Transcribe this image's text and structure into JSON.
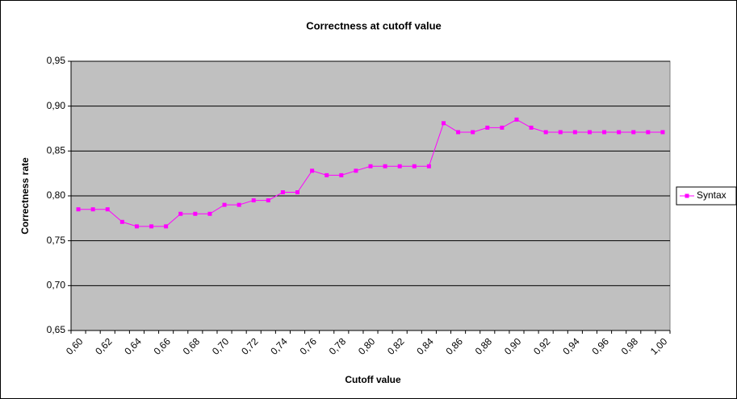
{
  "chart_data": {
    "type": "line",
    "title": "Correctness at cutoff value",
    "x_label": "Cutoff value",
    "y_label": "Correctness rate",
    "categories": [
      "0,60",
      null,
      "0,62",
      null,
      "0,64",
      null,
      "0,66",
      null,
      "0,68",
      null,
      "0,70",
      null,
      "0,72",
      null,
      "0,74",
      null,
      "0,76",
      null,
      "0,78",
      null,
      "0,80",
      null,
      "0,82",
      null,
      "0,84",
      null,
      "0,86",
      null,
      "0,88",
      null,
      "0,90",
      null,
      "0,92",
      null,
      "0,94",
      null,
      "0,96",
      null,
      "0,98",
      null,
      "1,00"
    ],
    "series": [
      {
        "name": "Syntax",
        "color": "#ff00ff",
        "values": [
          0.785,
          0.785,
          0.785,
          0.771,
          0.766,
          0.766,
          0.766,
          0.78,
          0.78,
          0.78,
          0.79,
          0.79,
          0.795,
          0.795,
          0.804,
          0.804,
          0.828,
          0.823,
          0.823,
          0.828,
          0.833,
          0.833,
          0.833,
          0.833,
          0.833,
          0.881,
          0.871,
          0.871,
          0.876,
          0.876,
          0.885,
          0.876,
          0.871,
          0.871,
          0.871,
          0.871,
          0.871,
          0.871,
          0.871,
          0.871,
          0.871
        ]
      }
    ],
    "ylim": [
      0.65,
      0.95
    ],
    "yticks": [
      {
        "value": 0.65,
        "label": "0,65"
      },
      {
        "value": 0.7,
        "label": "0,70"
      },
      {
        "value": 0.75,
        "label": "0,75"
      },
      {
        "value": 0.8,
        "label": "0,80"
      },
      {
        "value": 0.85,
        "label": "0,85"
      },
      {
        "value": 0.9,
        "label": "0,90"
      },
      {
        "value": 0.95,
        "label": "0,95"
      }
    ],
    "grid": true,
    "legend": "right",
    "plot_color": "#c0c0c0"
  }
}
